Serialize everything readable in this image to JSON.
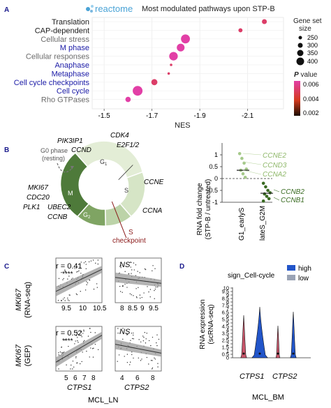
{
  "panel_a": {
    "letter": "A",
    "logo_text": "reactome",
    "title": "Most modulated pathways upon STP-B",
    "xlabel": "NES",
    "size_legend": {
      "title_line1": "Gene set",
      "title_line2": "size",
      "items": [
        "250",
        "300",
        "350",
        "400"
      ]
    },
    "color_legend": {
      "title_p": "P",
      "title_rest": " value",
      "ticks": [
        "0.006",
        "0.004",
        "0.002"
      ]
    },
    "colors": {
      "cell_cycle": "#1a1aa6",
      "other": "#1a1a1a",
      "grey": "#6b6b6b",
      "low": "#1a0d00",
      "mid": "#d43a1e",
      "high": "#e23fa6"
    }
  },
  "panel_b": {
    "letter": "B",
    "g0_line1": "G0 phase",
    "g0_line2": "(resting)",
    "phases": {
      "g1": "G",
      "g1_sub": "1",
      "s": "S",
      "g2": "G",
      "g2_sub": "2",
      "m": "M"
    },
    "genes_top": [
      "PIK3IP1",
      "CCND",
      "CDK4",
      "E2F1/2"
    ],
    "genes_right": [
      "CCNE",
      "CCNA"
    ],
    "genes_left": [
      "MKI67",
      "CDC20",
      "PLK1",
      "UBEC2",
      "CCNB"
    ],
    "checkpoint_line1": "S",
    "checkpoint_line2": "checkpoint",
    "dot_ylabel_line1": "RNA fold change",
    "dot_ylabel_line2": "(STP-B / untreated)",
    "dot_groups": [
      "G1_earlyS",
      "lateS_G2M"
    ],
    "dot_genes_up": [
      "CCNE2",
      "CCND3",
      "CCNA2"
    ],
    "dot_genes_down": [
      "CCNB2",
      "CCNB1"
    ],
    "dot_yticks": [
      "1",
      "0.5",
      "0",
      "-0.5",
      "-1"
    ]
  },
  "panel_c": {
    "letter": "C",
    "row1_ylabel_gene": "MKI67",
    "row1_ylabel_rest": "(RNA-seq)",
    "row2_ylabel_gene": "MKI67",
    "row2_ylabel_rest": "(GEP)",
    "r1": "r = 0.41",
    "r2": "r = 0.52",
    "stars": "****",
    "ns": "NS",
    "x_ticks_11": [
      "9.5",
      "10",
      "10.5"
    ],
    "x_ticks_12": [
      "8",
      "8.5",
      "9",
      "9.5"
    ],
    "x_ticks_21": [
      "5",
      "6",
      "7",
      "8"
    ],
    "x_ticks_22": [
      "4",
      "6",
      "8"
    ],
    "gene1": "CTPS1",
    "gene2": "CTPS2",
    "xlabel": "MCL_LN"
  },
  "panel_d": {
    "letter": "D",
    "legend_title": "sign_Cell-cycle",
    "legend_high": "high",
    "legend_low": "low",
    "ylabel_line1": "RNA expression",
    "ylabel_line2": "(scRNA-seq)",
    "yticks": [
      "0",
      "0.5",
      "1",
      "1.5",
      "2",
      "2.5",
      "3",
      "3.5",
      "4",
      "4.5",
      "5",
      "5.5",
      "6",
      "6.5",
      "7",
      "7.5",
      "8",
      "8.5",
      "9",
      "9.5",
      "10"
    ],
    "genes": [
      "CTPS1",
      "CTPS2"
    ],
    "xlabel": "MCL_BM",
    "colors": {
      "high": "#2255c9",
      "low": "#c9556a"
    }
  },
  "chart_data": [
    {
      "type": "scatter",
      "panel": "A",
      "title": "Most modulated pathways upon STP-B",
      "xlabel": "NES",
      "xlim": [
        -1.45,
        -2.25
      ],
      "xticks": [
        "-1.5",
        "-1.7",
        "-1.9",
        "-2.1"
      ],
      "points": [
        {
          "label": "Translation",
          "x": -2.17,
          "size": 300,
          "p": 0.005
        },
        {
          "label": "CAP-dependent",
          "x": -2.07,
          "size": 280,
          "p": 0.005
        },
        {
          "label": "Cellular stress",
          "x": -1.84,
          "size": 400,
          "p": 0.0065
        },
        {
          "label": "M phase",
          "x": -1.82,
          "size": 370,
          "p": 0.006
        },
        {
          "label": "Cellular responses",
          "x": -1.79,
          "size": 390,
          "p": 0.006
        },
        {
          "label": "Anaphase",
          "x": -1.78,
          "size": 240,
          "p": 0.005
        },
        {
          "label": "Metaphase",
          "x": -1.77,
          "size": 240,
          "p": 0.005
        },
        {
          "label": "Cell cycle checkpoints",
          "x": -1.71,
          "size": 330,
          "p": 0.005
        },
        {
          "label": "Cell cycle",
          "x": -1.64,
          "size": 420,
          "p": 0.0065
        },
        {
          "label": "Rho GTPases",
          "x": -1.6,
          "size": 310,
          "p": 0.0065
        }
      ],
      "size_legend": [
        250,
        300,
        350,
        400
      ],
      "color_scale": {
        "label": "P value",
        "range": [
          0.002,
          0.006
        ]
      }
    },
    {
      "type": "scatter",
      "panel": "B",
      "categories": [
        "G1_earlyS",
        "lateS_G2M"
      ],
      "ylabel": "RNA fold change (STP-B / untreated)",
      "ylim": [
        -1,
        1.2
      ],
      "series": [
        {
          "name": "G1_earlyS",
          "values": [
            1.05,
            0.85,
            0.65,
            0.4,
            0.35,
            0.2,
            0.05
          ],
          "median": 0.35
        },
        {
          "name": "lateS_G2M",
          "values": [
            -0.2,
            -0.35,
            -0.5,
            -0.6,
            -0.65,
            -0.75,
            -0.85,
            -0.95
          ],
          "median": -0.62
        }
      ]
    },
    {
      "type": "violin",
      "panel": "D",
      "categories": [
        "CTPS1",
        "CTPS2"
      ],
      "ylabel": "RNA expression (scRNA-seq)",
      "ylim": [
        0,
        10
      ],
      "series": [
        {
          "name": "high",
          "max": [
            7.3,
            6.6
          ]
        },
        {
          "name": "low",
          "max": [
            6.1,
            4.6
          ]
        }
      ]
    }
  ]
}
